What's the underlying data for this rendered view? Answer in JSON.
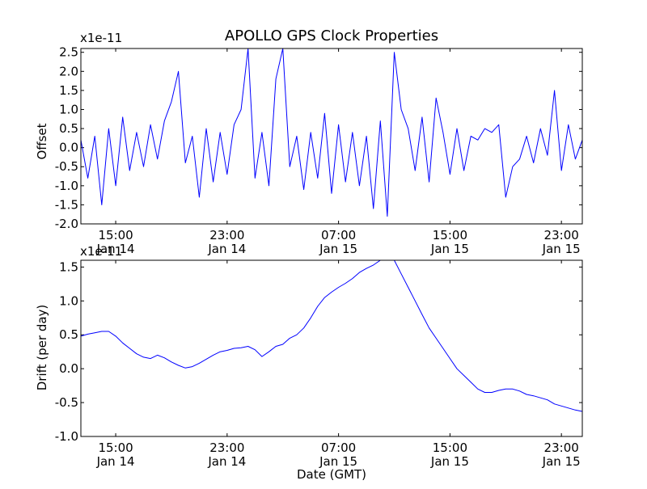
{
  "chart_data": [
    {
      "type": "line",
      "title": "APOLLO GPS Clock Properties",
      "xlabel": "",
      "ylabel": "Offset",
      "offset_text": "x1e-11",
      "ylim": [
        -2.0,
        2.6
      ],
      "ytick_values": [
        -2.0,
        -1.5,
        -1.0,
        -0.5,
        0.0,
        0.5,
        1.0,
        1.5,
        2.0,
        2.5
      ],
      "ytick_labels": [
        "-2.0",
        "-1.5",
        "-1.0",
        "-0.5",
        "0.0",
        "0.5",
        "1.0",
        "1.5",
        "2.0",
        "2.5"
      ],
      "xlim_hours": [
        12.5,
        48.5
      ],
      "xtick_hours": [
        15,
        23,
        31,
        39,
        47
      ],
      "xtick_labels": [
        [
          "15:00",
          "Jan 14"
        ],
        [
          "23:00",
          "Jan 14"
        ],
        [
          "07:00",
          "Jan 15"
        ],
        [
          "15:00",
          "Jan 15"
        ],
        [
          "23:00",
          "Jan 15"
        ]
      ],
      "line_color": "#0000ff",
      "series": [
        {
          "name": "Offset",
          "x_hours": [
            12.5,
            13.0,
            13.5,
            14.0,
            14.5,
            15.0,
            15.5,
            16.0,
            16.5,
            17.0,
            17.5,
            18.0,
            18.5,
            19.0,
            19.5,
            20.0,
            20.5,
            21.0,
            21.5,
            22.0,
            22.5,
            23.0,
            23.5,
            24.0,
            24.5,
            25.0,
            25.5,
            26.0,
            26.5,
            27.0,
            27.5,
            28.0,
            28.5,
            29.0,
            29.5,
            30.0,
            30.5,
            31.0,
            31.5,
            32.0,
            32.5,
            33.0,
            33.5,
            34.0,
            34.5,
            35.0,
            35.5,
            36.0,
            36.5,
            37.0,
            37.5,
            38.0,
            38.5,
            39.0,
            39.5,
            40.0,
            40.5,
            41.0,
            41.5,
            42.0,
            42.5,
            43.0,
            43.5,
            44.0,
            44.5,
            45.0,
            45.5,
            46.0,
            46.5,
            47.0,
            47.5,
            48.0,
            48.5
          ],
          "values": [
            0.2,
            -0.8,
            0.3,
            -1.5,
            0.5,
            -1.0,
            0.8,
            -0.6,
            0.4,
            -0.5,
            0.6,
            -0.3,
            0.7,
            1.2,
            2.0,
            -0.4,
            0.3,
            -1.3,
            0.5,
            -0.9,
            0.4,
            -0.7,
            0.6,
            1.0,
            2.6,
            -0.8,
            0.4,
            -1.0,
            1.8,
            2.6,
            -0.5,
            0.3,
            -1.1,
            0.4,
            -0.8,
            0.9,
            -1.2,
            0.6,
            -0.9,
            0.4,
            -1.0,
            0.3,
            -1.6,
            0.7,
            -1.8,
            2.5,
            1.0,
            0.5,
            -0.6,
            0.8,
            -0.9,
            1.3,
            0.4,
            -0.7,
            0.5,
            -0.6,
            0.3,
            0.2,
            0.5,
            0.4,
            0.6,
            -1.3,
            -0.5,
            -0.3,
            0.3,
            -0.4,
            0.5,
            -0.2,
            1.5,
            -0.6,
            0.6,
            -0.3,
            0.2
          ]
        }
      ]
    },
    {
      "type": "line",
      "title": "",
      "xlabel": "Date (GMT)",
      "ylabel": "Drift (per day)",
      "offset_text": "x1e-11",
      "ylim": [
        -1.0,
        1.6
      ],
      "ytick_values": [
        -1.0,
        -0.5,
        0.0,
        0.5,
        1.0,
        1.5
      ],
      "ytick_labels": [
        "-1.0",
        "-0.5",
        "0.0",
        "0.5",
        "1.0",
        "1.5"
      ],
      "xlim_hours": [
        12.5,
        48.5
      ],
      "xtick_hours": [
        15,
        23,
        31,
        39,
        47
      ],
      "xtick_labels": [
        [
          "15:00",
          "Jan 14"
        ],
        [
          "23:00",
          "Jan 14"
        ],
        [
          "07:00",
          "Jan 15"
        ],
        [
          "15:00",
          "Jan 15"
        ],
        [
          "23:00",
          "Jan 15"
        ]
      ],
      "line_color": "#0000ff",
      "series": [
        {
          "name": "Drift",
          "x_hours": [
            12.5,
            13.0,
            13.5,
            14.0,
            14.5,
            15.0,
            15.5,
            16.0,
            16.5,
            17.0,
            17.5,
            18.0,
            18.5,
            19.0,
            19.5,
            20.0,
            20.5,
            21.0,
            21.5,
            22.0,
            22.5,
            23.0,
            23.5,
            24.0,
            24.5,
            25.0,
            25.5,
            26.0,
            26.5,
            27.0,
            27.5,
            28.0,
            28.5,
            29.0,
            29.5,
            30.0,
            30.5,
            31.0,
            31.5,
            32.0,
            32.5,
            33.0,
            33.5,
            34.0,
            34.5,
            35.0,
            35.5,
            36.0,
            36.5,
            37.0,
            37.5,
            38.0,
            38.5,
            39.0,
            39.5,
            40.0,
            40.5,
            41.0,
            41.5,
            42.0,
            42.5,
            43.0,
            43.5,
            44.0,
            44.5,
            45.0,
            45.5,
            46.0,
            46.5,
            47.0,
            47.5,
            48.0,
            48.5
          ],
          "values": [
            0.48,
            0.51,
            0.53,
            0.55,
            0.55,
            0.48,
            0.38,
            0.3,
            0.22,
            0.17,
            0.15,
            0.2,
            0.16,
            0.1,
            0.05,
            0.01,
            0.03,
            0.08,
            0.14,
            0.2,
            0.25,
            0.27,
            0.3,
            0.31,
            0.33,
            0.28,
            0.18,
            0.25,
            0.33,
            0.36,
            0.45,
            0.5,
            0.6,
            0.75,
            0.92,
            1.05,
            1.13,
            1.2,
            1.26,
            1.33,
            1.42,
            1.48,
            1.53,
            1.6,
            1.62,
            1.6,
            1.4,
            1.2,
            1.0,
            0.8,
            0.6,
            0.45,
            0.3,
            0.15,
            0.0,
            -0.1,
            -0.2,
            -0.3,
            -0.35,
            -0.35,
            -0.32,
            -0.3,
            -0.3,
            -0.33,
            -0.38,
            -0.4,
            -0.43,
            -0.46,
            -0.52,
            -0.55,
            -0.58,
            -0.61,
            -0.63
          ]
        }
      ]
    }
  ]
}
